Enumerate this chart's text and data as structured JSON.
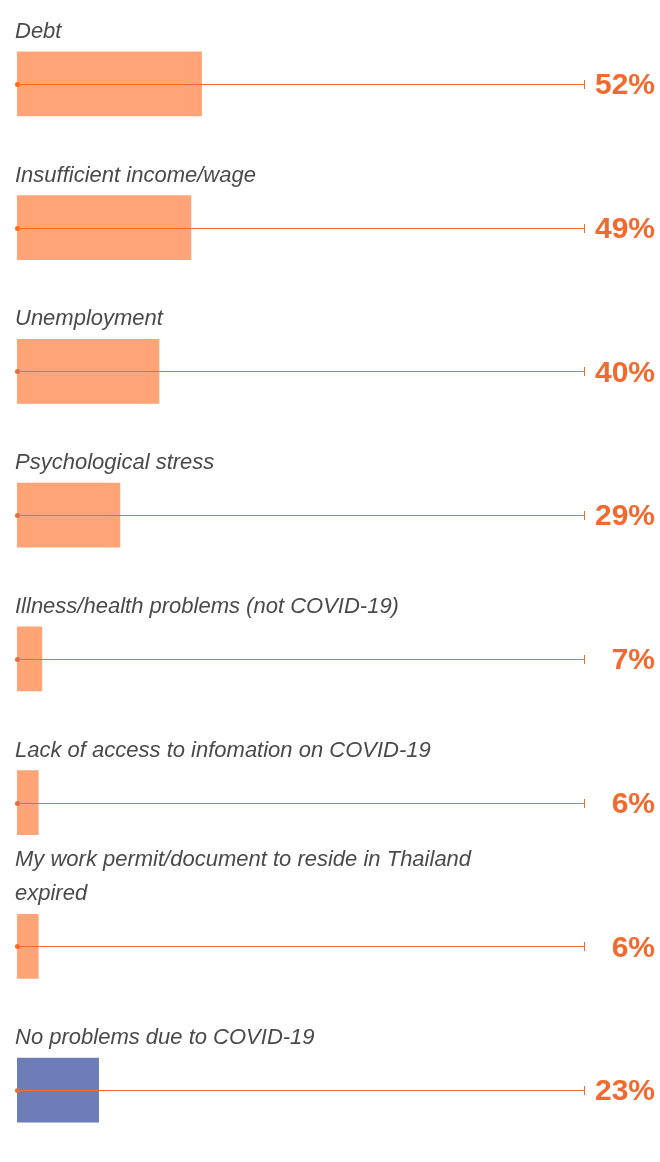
{
  "chart_data": {
    "type": "bar",
    "orientation": "horizontal",
    "tick_labels": "y",
    "legend": false,
    "categories": [
      "Debt",
      "Insufficient income/wage",
      "Unemployment",
      "Psychological stress",
      "Illness/health problems (not COVID-19)",
      "Lack of access to infomation on COVID-19",
      "My work permit/document to reside in Thailand expired",
      "No problems due to COVID-19"
    ],
    "values": [
      52,
      49,
      40,
      29,
      7,
      6,
      6,
      23
    ],
    "colors": [
      "#ffa476",
      "#ffa476",
      "#ffa476",
      "#ffa476",
      "#ffa476",
      "#ffa476",
      "#ffa476",
      "#6d7db8"
    ],
    "value_labels": [
      "52%",
      "49%",
      "40%",
      "29%",
      "7%",
      "6%",
      "6%",
      "23%"
    ]
  }
}
